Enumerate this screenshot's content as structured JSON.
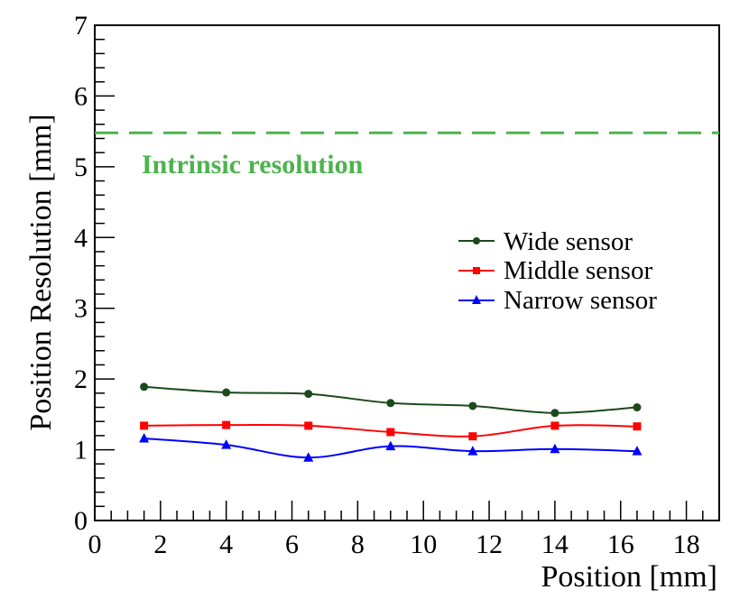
{
  "chart_data": {
    "type": "line",
    "title": "",
    "xlabel": "Position [mm]",
    "ylabel": "Position Resolution [mm]",
    "xlim": [
      0,
      19
    ],
    "ylim": [
      0,
      7
    ],
    "x_ticks": [
      "0",
      "2",
      "4",
      "6",
      "8",
      "10",
      "12",
      "14",
      "16",
      "18"
    ],
    "y_ticks": [
      "0",
      "1",
      "2",
      "3",
      "4",
      "5",
      "6",
      "7"
    ],
    "x": [
      1.5,
      4.0,
      6.5,
      9.0,
      11.5,
      14.0,
      16.5
    ],
    "series": [
      {
        "name": "Wide sensor",
        "marker": "circle",
        "color": "#1b4a1b",
        "values": [
          1.89,
          1.81,
          1.79,
          1.66,
          1.62,
          1.52,
          1.6
        ]
      },
      {
        "name": "Middle sensor",
        "marker": "square",
        "color": "#ff0000",
        "values": [
          1.34,
          1.35,
          1.34,
          1.25,
          1.19,
          1.34,
          1.33
        ]
      },
      {
        "name": "Narrow sensor",
        "marker": "triangle",
        "color": "#0000ff",
        "values": [
          1.16,
          1.07,
          0.89,
          1.05,
          0.98,
          1.01,
          0.98
        ]
      }
    ],
    "reference_line": {
      "label": "Intrinsic resolution",
      "y": 5.48,
      "color": "#4db34d",
      "style": "dashed"
    },
    "legend_position": "right"
  }
}
